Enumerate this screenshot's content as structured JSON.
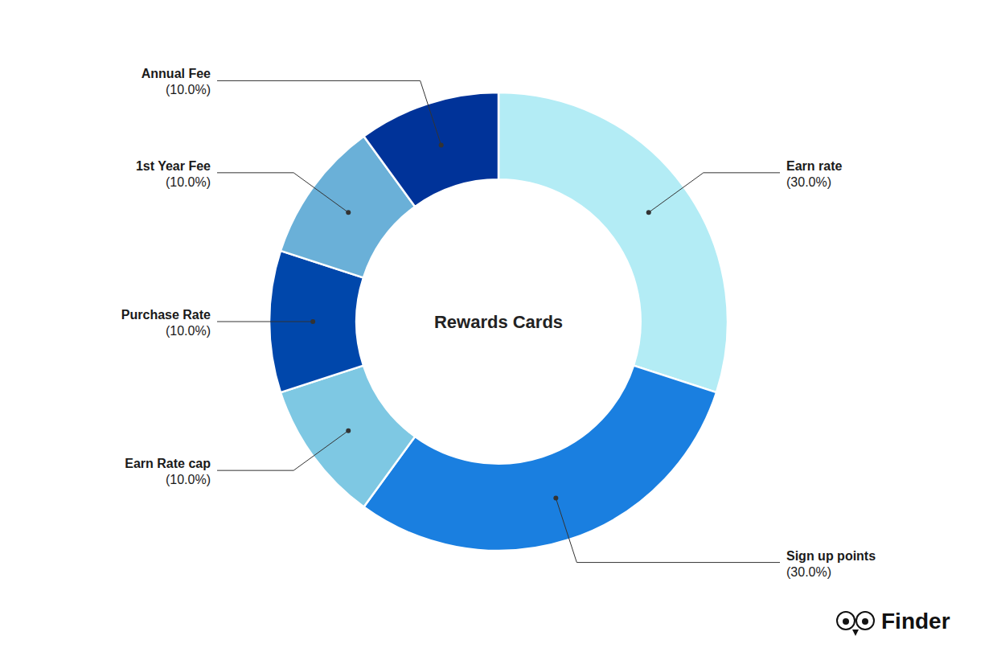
{
  "chart_data": {
    "type": "pie",
    "title": "Rewards Cards",
    "categories": [
      "Earn rate",
      "Sign up points",
      "Earn Rate cap",
      "Purchase Rate",
      "1st Year Fee",
      "Annual Fee"
    ],
    "values": [
      30.0,
      30.0,
      10.0,
      10.0,
      10.0,
      10.0
    ],
    "value_labels": [
      "(30.0%)",
      "(30.0%)",
      "(10.0%)",
      "(10.0%)",
      "(10.0%)",
      "(10.0%)"
    ],
    "colors": [
      "#b3ecf5",
      "#1a7fe0",
      "#7ec8e3",
      "#0047ab",
      "#6ab0d8",
      "#003399"
    ],
    "data_labels": true,
    "annotations": [
      "Finder"
    ]
  }
}
